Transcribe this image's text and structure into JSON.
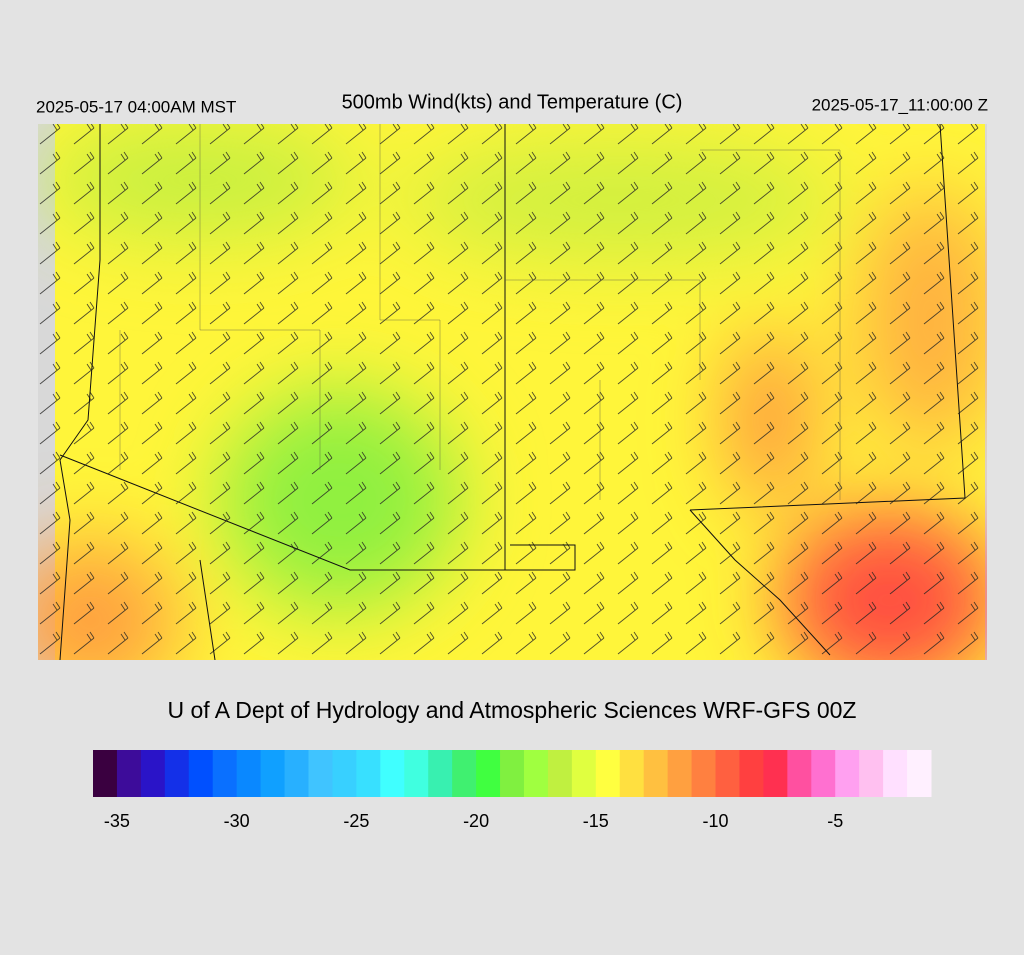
{
  "header": {
    "left": "2025-05-17 04:00AM MST",
    "title": "500mb Wind(kts) and Temperature (C)",
    "right": "2025-05-17_11:00:00 Z"
  },
  "credit": "U of A Dept of Hydrology and Atmospheric Sciences WRF-GFS 00Z",
  "colorbar": {
    "lim": [
      -36,
      -1
    ],
    "ticks": [
      -35,
      -30,
      -25,
      -20,
      -15,
      -10,
      -5
    ],
    "colors": [
      "#3a0040",
      "#3d0c9a",
      "#2a14c8",
      "#1430e8",
      "#0050ff",
      "#0a70ff",
      "#0a88ff",
      "#10a0ff",
      "#28b0ff",
      "#40c4ff",
      "#38d0ff",
      "#38e0ff",
      "#40ffff",
      "#40ffe0",
      "#38f0b0",
      "#40f070",
      "#40ff40",
      "#80f040",
      "#a0ff40",
      "#c0f040",
      "#e0ff40",
      "#ffff40",
      "#ffe040",
      "#ffc040",
      "#ffa040",
      "#ff8040",
      "#ff6040",
      "#ff4040",
      "#ff3050",
      "#ff50a0",
      "#ff70d0",
      "#ffa0f0",
      "#ffc0f0",
      "#ffe0ff",
      "#fff0ff"
    ]
  }
}
